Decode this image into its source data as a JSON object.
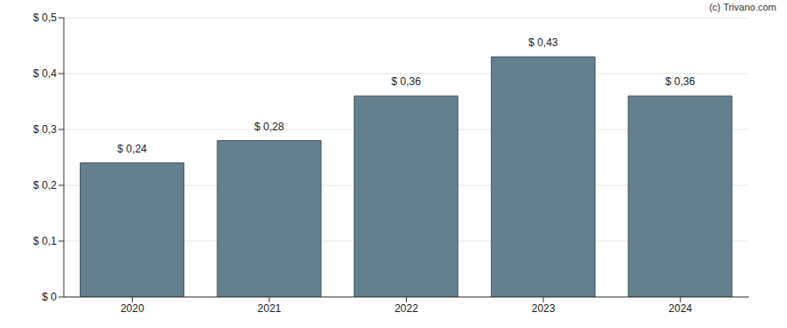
{
  "chart_data": {
    "type": "bar",
    "categories": [
      "2020",
      "2021",
      "2022",
      "2023",
      "2024"
    ],
    "values": [
      0.24,
      0.28,
      0.36,
      0.43,
      0.36
    ],
    "value_labels": [
      "$ 0,24",
      "$ 0,28",
      "$ 0,36",
      "$ 0,43",
      "$ 0,36"
    ],
    "data_labels": true,
    "color": "#64808f",
    "ylim": [
      0,
      0.5
    ],
    "yticks": [
      {
        "value": 0,
        "label": "$ 0"
      },
      {
        "value": 0.1,
        "label": "$ 0,1"
      },
      {
        "value": 0.2,
        "label": "$ 0,2"
      },
      {
        "value": 0.3,
        "label": "$ 0,3"
      },
      {
        "value": 0.4,
        "label": "$ 0,4"
      },
      {
        "value": 0.5,
        "label": "$ 0,5"
      }
    ],
    "grid": true,
    "annotations": [
      "(c) Trivano.com"
    ]
  }
}
